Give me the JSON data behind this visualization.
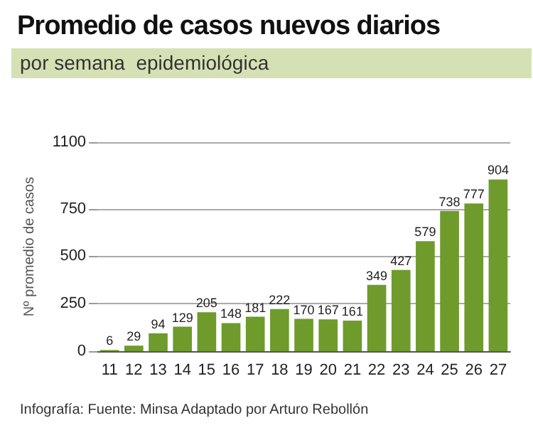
{
  "chart_data": {
    "type": "bar",
    "title": "Promedio de casos nuevos diarios",
    "subtitle": "por semana  epidemiológica",
    "ylabel": "Nº promedio de casos",
    "categories": [
      "11",
      "12",
      "13",
      "14",
      "15",
      "16",
      "17",
      "18",
      "19",
      "20",
      "21",
      "22",
      "23",
      "24",
      "25",
      "26",
      "27"
    ],
    "values": [
      6,
      29,
      94,
      129,
      205,
      148,
      181,
      222,
      170,
      167,
      161,
      349,
      427,
      579,
      738,
      777,
      904
    ],
    "color": "#6e9b2c",
    "data_labels": true,
    "grid": "y",
    "ylim": [
      0,
      1100
    ],
    "yticks": [
      0,
      250,
      500,
      750,
      1100
    ],
    "annotations": [
      "Infografía: Fuente: Minsa Adaptado por Arturo Rebollón"
    ]
  }
}
